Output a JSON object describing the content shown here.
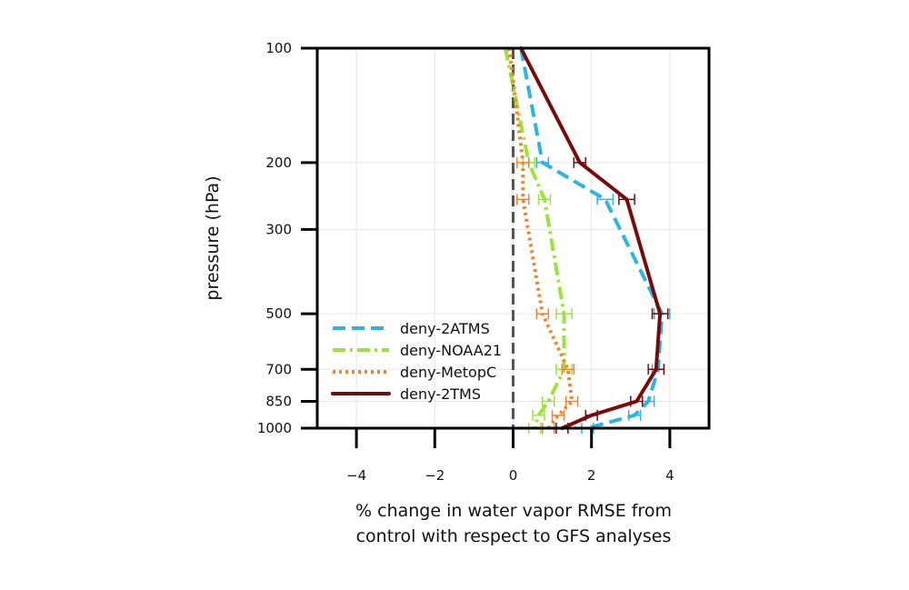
{
  "chart_data": {
    "type": "line",
    "orientation": "vertical-profile",
    "xlabel_lines": [
      "% change in water vapor RMSE from",
      "control with respect to GFS analyses"
    ],
    "ylabel": "pressure (hPa)",
    "xlim": [
      -5,
      5
    ],
    "ylim": [
      1000,
      100
    ],
    "y_scale": "log",
    "x_ticks": [
      -4,
      -2,
      0,
      2,
      4
    ],
    "x_tick_labels": [
      "−4",
      "−2",
      "0",
      "2",
      "4"
    ],
    "y_ticks": [
      100,
      200,
      300,
      500,
      700,
      850,
      1000
    ],
    "y_tick_labels": [
      "100",
      "200",
      "300",
      "500",
      "700",
      "850",
      "1000"
    ],
    "grid": true,
    "legend_position": "lower-left",
    "zero_line": {
      "x": 0,
      "style": "dashed",
      "color": "#555555"
    },
    "series": [
      {
        "name": "deny-2ATMS",
        "color": "#29b6e6",
        "style": "dashed",
        "points": [
          {
            "p": 100,
            "x": 0.2,
            "err": 0.1
          },
          {
            "p": 200,
            "x": 0.75,
            "err": 0.15
          },
          {
            "p": 250,
            "x": 2.35,
            "err": 0.2
          },
          {
            "p": 500,
            "x": 3.8,
            "err": 0.2
          },
          {
            "p": 700,
            "x": 3.7,
            "err": 0.15
          },
          {
            "p": 850,
            "x": 3.45,
            "err": 0.15
          },
          {
            "p": 925,
            "x": 3.1,
            "err": 0.15
          },
          {
            "p": 1000,
            "x": 1.9,
            "err": 0.15
          }
        ]
      },
      {
        "name": "deny-NOAA21",
        "color": "#9be53a",
        "style": "dashdot",
        "points": [
          {
            "p": 100,
            "x": -0.2,
            "err": 0.1
          },
          {
            "p": 200,
            "x": 0.4,
            "err": 0.15
          },
          {
            "p": 250,
            "x": 0.8,
            "err": 0.15
          },
          {
            "p": 500,
            "x": 1.3,
            "err": 0.2
          },
          {
            "p": 700,
            "x": 1.3,
            "err": 0.2
          },
          {
            "p": 850,
            "x": 0.9,
            "err": 0.15
          },
          {
            "p": 925,
            "x": 0.65,
            "err": 0.15
          },
          {
            "p": 1000,
            "x": 0.55,
            "err": 0.15
          }
        ]
      },
      {
        "name": "deny-MetopC",
        "color": "#f5832a",
        "style": "dotted",
        "points": [
          {
            "p": 100,
            "x": -0.1,
            "err": 0.1
          },
          {
            "p": 200,
            "x": 0.25,
            "err": 0.15
          },
          {
            "p": 250,
            "x": 0.25,
            "err": 0.15
          },
          {
            "p": 500,
            "x": 0.75,
            "err": 0.15
          },
          {
            "p": 700,
            "x": 1.4,
            "err": 0.15
          },
          {
            "p": 850,
            "x": 1.5,
            "err": 0.15
          },
          {
            "p": 925,
            "x": 1.15,
            "err": 0.15
          },
          {
            "p": 1000,
            "x": 0.9,
            "err": 0.15
          }
        ]
      },
      {
        "name": "deny-2TMS",
        "color": "#7a0a0a",
        "style": "solid",
        "points": [
          {
            "p": 100,
            "x": 0.2,
            "err": 0.1
          },
          {
            "p": 200,
            "x": 1.7,
            "err": 0.15
          },
          {
            "p": 250,
            "x": 2.9,
            "err": 0.2
          },
          {
            "p": 500,
            "x": 3.75,
            "err": 0.2
          },
          {
            "p": 700,
            "x": 3.65,
            "err": 0.2
          },
          {
            "p": 850,
            "x": 3.15,
            "err": 0.15
          },
          {
            "p": 925,
            "x": 2.0,
            "err": 0.15
          },
          {
            "p": 1000,
            "x": 1.25,
            "err": 0.15
          }
        ]
      }
    ]
  }
}
